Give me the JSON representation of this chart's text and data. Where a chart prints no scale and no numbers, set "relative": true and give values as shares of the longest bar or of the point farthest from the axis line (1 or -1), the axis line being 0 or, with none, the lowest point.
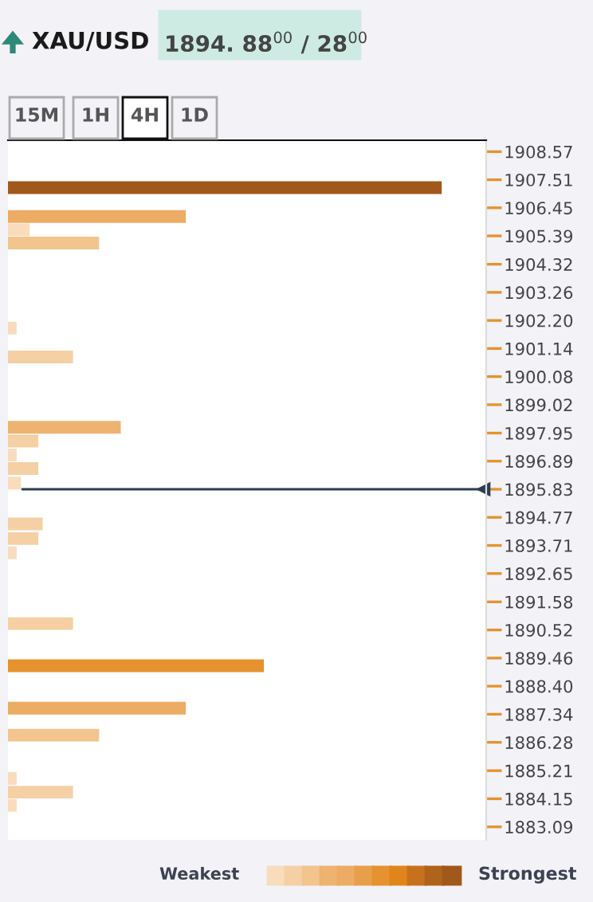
{
  "chart_data": {
    "type": "bar",
    "orientation": "horizontal",
    "relative": true,
    "title": "XAU/USD",
    "subtitle": "1894. 88$^{00}$ / 28$^{00}$",
    "x": [
      1907.21,
      1906.12,
      1905.62,
      1905.12,
      1901.91,
      1900.82,
      1898.17,
      1897.65,
      1897.12,
      1896.61,
      1896.06,
      1894.52,
      1893.97,
      1893.43,
      1890.76,
      1889.17,
      1887.57,
      1886.55,
      1884.92,
      1884.4,
      1883.9
    ],
    "values": [
      1.0,
      0.41,
      0.05,
      0.21,
      0.02,
      0.15,
      0.26,
      0.07,
      0.02,
      0.07,
      0.03,
      0.08,
      0.07,
      0.02,
      0.15,
      0.59,
      0.41,
      0.21,
      0.02,
      0.15,
      0.02
    ],
    "colors": [
      "#a0591a",
      "#ecac64",
      "#f8dcbc",
      "#f2c48e",
      "#f8dcbc",
      "#f5d0a4",
      "#eeb370",
      "#f5d0a4",
      "#f8dcbc",
      "#f5d0a4",
      "#f8dcbc",
      "#f5d0a4",
      "#f5d0a4",
      "#f8dcbc",
      "#f5d0a4",
      "#e6922e",
      "#ecac64",
      "#f2c48e",
      "#f8dcbc",
      "#f5d0a4",
      "#f8dcbc"
    ],
    "ylim": [
      1882.6,
      1909.0
    ],
    "yticks": [
      1908.57,
      1907.51,
      1906.45,
      1905.39,
      1904.32,
      1903.26,
      {
        "value": 1902.2,
        "label": "1902.20"
      },
      1901.14,
      1900.08,
      1899.02,
      1897.95,
      1896.89,
      1895.83,
      1894.77,
      1893.71,
      1892.65,
      1891.58,
      1890.52,
      1889.46,
      {
        "value": 1888.4,
        "label": "1888.40"
      },
      1887.34,
      1886.28,
      1885.21,
      1884.15,
      1883.09
    ],
    "ref_lines": [
      {
        "axis": "y",
        "value": 1895.83,
        "color": "#2c3e50"
      }
    ],
    "annotations": [
      "15M",
      "1H",
      "4H",
      "1D",
      "Weakest",
      "Strongest"
    ],
    "grid": false
  }
}
